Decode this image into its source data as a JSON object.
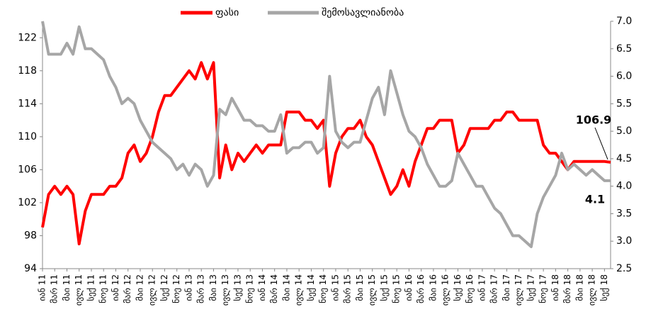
{
  "chart_data": {
    "type": "line",
    "categories": [
      "იან 11",
      null,
      "მარ 11",
      null,
      "მაი 11",
      null,
      "ივლ 11",
      null,
      "სექ 11",
      null,
      "ნოე 11",
      null,
      "იან 12",
      null,
      "მარ 12",
      null,
      "მაი 12",
      null,
      "ივლ 12",
      null,
      "სექ 12",
      null,
      "ნოე 12",
      null,
      "იან 13",
      null,
      "მარ 13",
      null,
      "მაი 13",
      null,
      "ივლ 13",
      null,
      "სექ 13",
      null,
      "ნოე 13",
      null,
      "იან 14",
      null,
      "მარ 14",
      null,
      "მაი 14",
      null,
      "ივლ 14",
      null,
      "სექ 14",
      null,
      "ნოე 14",
      null,
      "იან 15",
      null,
      "მარ 15",
      null,
      "მაი 15",
      null,
      "ივლ 15",
      null,
      "სექ 15",
      null,
      "ნოე 15",
      null,
      "იან 16",
      null,
      "მარ 16",
      null,
      "მაი 16",
      null,
      "ივლ 16",
      null,
      "სექ 16",
      null,
      "ნოე 16",
      null,
      "იან 17",
      null,
      "მარ 17",
      null,
      "მაი 17",
      null,
      "ივლ 17",
      null,
      "სექ 17",
      null,
      "ნოე 17",
      null,
      "იან 18",
      null,
      "მარ 18",
      null,
      "მაი 18",
      null,
      "ივლ 18",
      null,
      "სექ 18",
      null
    ],
    "series": [
      {
        "name": "ფასი",
        "color": "#ff0000",
        "axis": "y",
        "values": [
          99,
          103,
          104,
          103,
          104,
          103,
          97,
          101,
          103,
          103,
          103,
          104,
          104,
          105,
          108,
          109,
          107,
          108,
          110,
          113,
          115,
          115,
          116,
          117,
          118,
          117,
          119,
          117,
          119,
          105,
          109,
          106,
          108,
          107,
          108,
          109,
          108,
          109,
          109,
          109,
          113,
          113,
          113,
          112,
          112,
          111,
          112,
          104,
          108,
          110,
          111,
          111,
          112,
          110,
          109,
          107,
          105,
          103,
          104,
          106,
          104,
          107,
          109,
          111,
          111,
          112,
          112,
          112,
          108,
          109,
          111,
          111,
          111,
          111,
          112,
          112,
          113,
          113,
          112,
          112,
          112,
          112,
          109,
          108,
          108,
          107,
          106,
          107,
          107,
          107,
          107,
          107,
          107,
          106.9
        ]
      },
      {
        "name": "შემოსავლიანობა",
        "color": "#a6a6a6",
        "axis": "y2",
        "values": [
          7.0,
          6.4,
          6.4,
          6.4,
          6.6,
          6.4,
          6.9,
          6.5,
          6.5,
          6.4,
          6.3,
          6.0,
          5.8,
          5.5,
          5.6,
          5.5,
          5.2,
          5.0,
          4.8,
          4.7,
          4.6,
          4.5,
          4.3,
          4.4,
          4.2,
          4.4,
          4.3,
          4.0,
          4.2,
          5.4,
          5.3,
          5.6,
          5.4,
          5.2,
          5.2,
          5.1,
          5.1,
          5.0,
          5.0,
          5.3,
          4.6,
          4.7,
          4.7,
          4.8,
          4.8,
          4.6,
          4.7,
          6.0,
          5.0,
          4.8,
          4.7,
          4.8,
          4.8,
          5.2,
          5.6,
          5.8,
          5.3,
          6.1,
          5.7,
          5.3,
          5.0,
          4.9,
          4.7,
          4.4,
          4.2,
          4.0,
          4.0,
          4.1,
          4.6,
          4.4,
          4.2,
          4.0,
          4.0,
          3.8,
          3.6,
          3.5,
          3.3,
          3.1,
          3.1,
          3.0,
          2.9,
          3.5,
          3.8,
          4.0,
          4.2,
          4.6,
          4.3,
          4.4,
          4.3,
          4.2,
          4.3,
          4.2,
          4.1,
          4.1
        ]
      }
    ],
    "annotations": [
      "106.9",
      "4.1"
    ],
    "ylim": [
      94,
      124
    ],
    "yticks": [
      94,
      98,
      102,
      106,
      110,
      114,
      118,
      122
    ],
    "y2lim": [
      2.5,
      7.0
    ],
    "y2ticks": [
      {
        "value": 2.5,
        "label": "2.5"
      },
      {
        "value": 3,
        "label": "3.0"
      },
      {
        "value": 3.5,
        "label": "3.5"
      },
      {
        "value": 4,
        "label": "4.0"
      },
      {
        "value": 4.5,
        "label": "4.5"
      },
      {
        "value": 5,
        "label": "5.0"
      },
      {
        "value": 5.5,
        "label": "5.5"
      },
      {
        "value": 6,
        "label": "6.0"
      },
      {
        "value": 6.5,
        "label": "6.5"
      },
      {
        "value": 7,
        "label": "7.0"
      }
    ],
    "legend": "top"
  }
}
